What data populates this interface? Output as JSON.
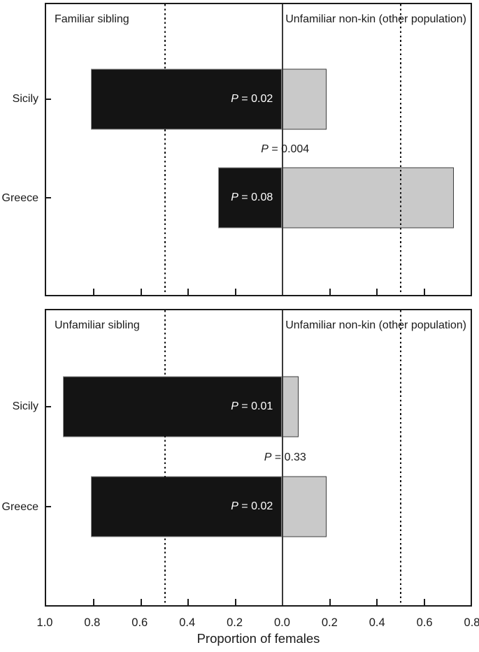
{
  "chart_data": {
    "type": "bar",
    "variant": "diverging-horizontal-two-panel",
    "xlabel": "Proportion of females",
    "x_tick_labels": [
      "1.0",
      "0.8",
      "0.6",
      "0.4",
      "0.2",
      "0.0",
      "0.2",
      "0.4",
      "0.6",
      "0.8"
    ],
    "x_axis_span": {
      "left_max": 1.0,
      "right_max": 0.8,
      "tick_step": 0.2
    },
    "reference_lines": {
      "solid_at": 0.0,
      "dotted_at_left": 0.5,
      "dotted_at_right": 0.5
    },
    "categories": [
      "Sicily",
      "Greece"
    ],
    "panels": [
      {
        "left_header": "Familiar sibling",
        "right_header": "Unfamiliar non-kin (other population)",
        "center_p_label": "P = 0.004",
        "rows": [
          {
            "category": "Sicily",
            "left_value": 0.81,
            "right_value": 0.19,
            "p_label": "P = 0.02"
          },
          {
            "category": "Greece",
            "left_value": 0.27,
            "right_value": 0.73,
            "p_label": "P = 0.08"
          }
        ]
      },
      {
        "left_header": "Unfamiliar sibling",
        "right_header": "Unfamiliar non-kin (other population)",
        "center_p_label": "P = 0.33",
        "rows": [
          {
            "category": "Sicily",
            "left_value": 0.93,
            "right_value": 0.07,
            "p_label": "P = 0.01"
          },
          {
            "category": "Greece",
            "left_value": 0.81,
            "right_value": 0.19,
            "p_label": "P = 0.02"
          }
        ]
      }
    ],
    "colors": {
      "left_bar_fill": "#141414",
      "left_bar_border": "#8a8a8a",
      "right_bar_fill": "#c9c9c9",
      "right_bar_border": "#3d3d3d",
      "axis": "#1a1a1a",
      "zero_line": "#3a3a3a",
      "bar_label_text": "#ffffff",
      "text": "#1a1a1a",
      "background": "#ffffff"
    }
  }
}
